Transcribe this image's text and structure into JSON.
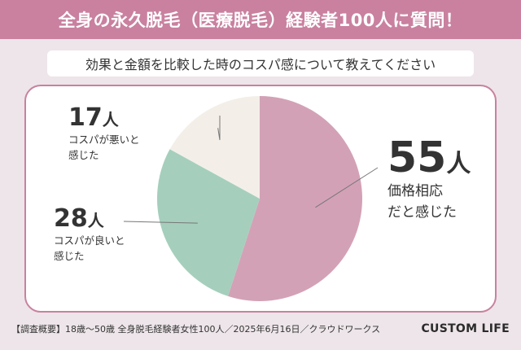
{
  "header": {
    "title": "全身の永久脱毛（医療脱毛）経験者100人に質問！"
  },
  "question": "効果と金額を比較した時のコスパ感について教えてください",
  "chart_data": {
    "type": "pie",
    "total": 100,
    "unit": "人",
    "slices": [
      {
        "value": 55,
        "unit": "人",
        "label_line1": "価格相応",
        "label_line2": "だと感じた",
        "color": "#d3a1b6"
      },
      {
        "value": 28,
        "unit": "人",
        "label_line1": "コスパが良いと",
        "label_line2": "感じた",
        "color": "#a5cfbc"
      },
      {
        "value": 17,
        "unit": "人",
        "label_line1": "コスパが悪いと",
        "label_line2": "感じた",
        "color": "#f3efe8"
      }
    ]
  },
  "footer": {
    "note": "【調査概要】18歳～50歳 全身脱毛経験者女性100人／2025年6月16日／クラウドワークス",
    "brand": "CUSTOM LIFE"
  }
}
